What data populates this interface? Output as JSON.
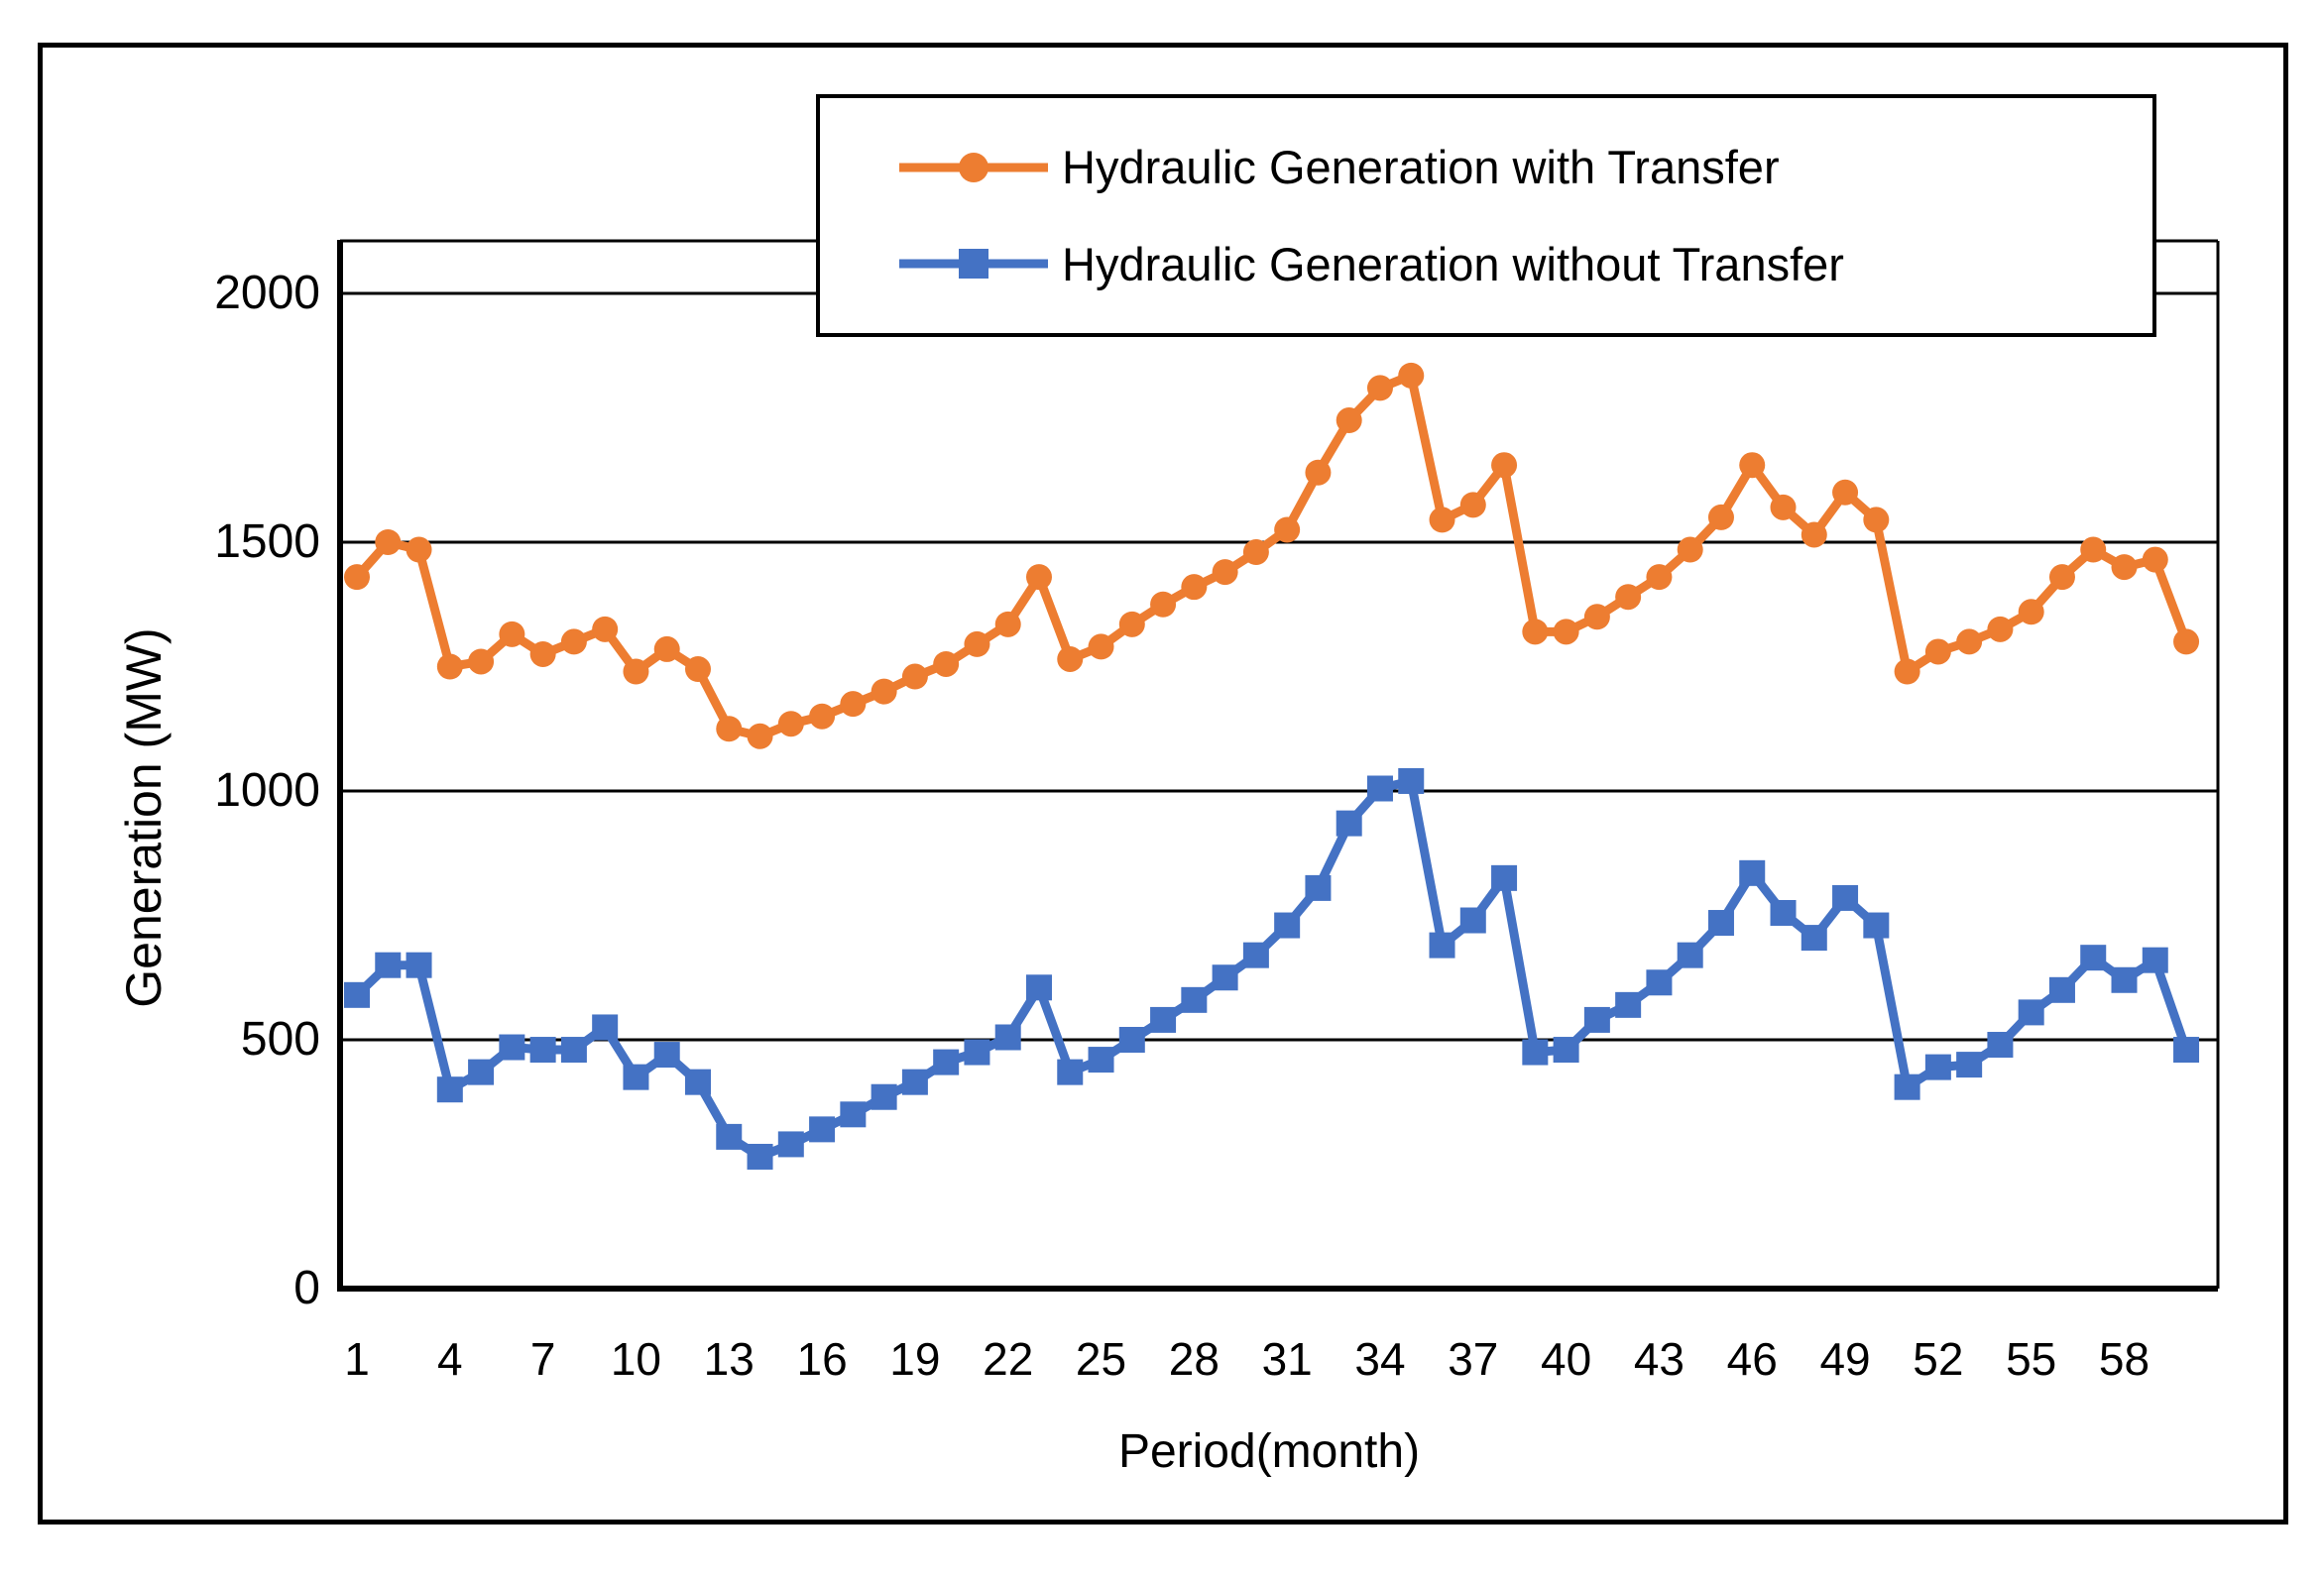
{
  "figure": {
    "background": "#ffffff",
    "border_color": "#000000"
  },
  "chart_data": {
    "type": "line",
    "title": "",
    "xlabel": "Period(month)",
    "ylabel": "Generation (MW)",
    "x_ticks": [
      1,
      4,
      7,
      10,
      13,
      16,
      19,
      22,
      25,
      28,
      31,
      34,
      37,
      40,
      43,
      46,
      49,
      52,
      55,
      58
    ],
    "y_ticks": [
      0,
      500,
      1000,
      1500,
      2000
    ],
    "xlim": [
      1,
      60
    ],
    "ylim": [
      0,
      2110
    ],
    "grid": "horizontal-major",
    "legend_position": "top-center-overlapping-plot",
    "x": [
      1,
      2,
      3,
      4,
      5,
      6,
      7,
      8,
      9,
      10,
      11,
      12,
      13,
      14,
      15,
      16,
      17,
      18,
      19,
      20,
      21,
      22,
      23,
      24,
      25,
      26,
      27,
      28,
      29,
      30,
      31,
      32,
      33,
      34,
      35,
      36,
      37,
      38,
      39,
      40,
      41,
      42,
      43,
      44,
      45,
      46,
      47,
      48,
      49,
      50,
      51,
      52,
      53,
      54,
      55,
      56,
      57,
      58,
      59,
      60
    ],
    "series": [
      {
        "name": "Hydraulic Generation with Transfer",
        "color": "#ED7D31",
        "marker": "circle",
        "values": [
          1430,
          1500,
          1485,
          1250,
          1260,
          1315,
          1275,
          1300,
          1325,
          1240,
          1285,
          1245,
          1125,
          1110,
          1135,
          1150,
          1175,
          1200,
          1230,
          1255,
          1295,
          1335,
          1430,
          1265,
          1290,
          1335,
          1375,
          1410,
          1440,
          1480,
          1525,
          1640,
          1745,
          1810,
          1835,
          1545,
          1575,
          1655,
          1320,
          1320,
          1350,
          1390,
          1430,
          1485,
          1550,
          1655,
          1570,
          1515,
          1600,
          1545,
          1240,
          1280,
          1300,
          1325,
          1360,
          1430,
          1485,
          1450,
          1465,
          1300
        ]
      },
      {
        "name": "Hydraulic Generation without Transfer",
        "color": "#4472C4",
        "marker": "square",
        "values": [
          590,
          650,
          650,
          400,
          435,
          485,
          480,
          480,
          525,
          425,
          470,
          415,
          305,
          265,
          290,
          320,
          350,
          385,
          415,
          455,
          475,
          505,
          605,
          435,
          460,
          500,
          540,
          580,
          625,
          670,
          730,
          805,
          935,
          1005,
          1020,
          690,
          740,
          825,
          475,
          480,
          540,
          570,
          615,
          670,
          735,
          835,
          755,
          705,
          785,
          730,
          405,
          445,
          450,
          490,
          555,
          600,
          665,
          620,
          660,
          480
        ]
      }
    ]
  }
}
